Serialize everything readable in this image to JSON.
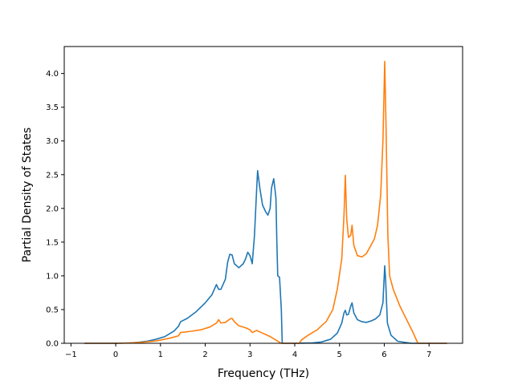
{
  "chart_data": {
    "type": "line",
    "title": "",
    "xlabel": "Frequency (THz)",
    "ylabel": "Partial Density of States",
    "xlim": [
      -1.15,
      7.75
    ],
    "ylim": [
      0.0,
      4.4
    ],
    "xticks": [
      -1,
      0,
      1,
      2,
      3,
      4,
      5,
      6,
      7
    ],
    "yticks": [
      0.0,
      0.5,
      1.0,
      1.5,
      2.0,
      2.5,
      3.0,
      3.5,
      4.0
    ],
    "xtick_labels": [
      "−1",
      "0",
      "1",
      "2",
      "3",
      "4",
      "5",
      "6",
      "7"
    ],
    "ytick_labels": [
      "0.0",
      "0.5",
      "1.0",
      "1.5",
      "2.0",
      "2.5",
      "3.0",
      "3.5",
      "4.0"
    ],
    "grid": false,
    "legend": "none",
    "series": [
      {
        "color": "#1f77b4",
        "points": [
          [
            -0.7,
            0.0
          ],
          [
            0.0,
            0.0
          ],
          [
            0.3,
            0.005
          ],
          [
            0.5,
            0.015
          ],
          [
            0.7,
            0.03
          ],
          [
            0.9,
            0.06
          ],
          [
            1.1,
            0.1
          ],
          [
            1.3,
            0.18
          ],
          [
            1.4,
            0.25
          ],
          [
            1.45,
            0.32
          ],
          [
            1.6,
            0.37
          ],
          [
            1.8,
            0.47
          ],
          [
            2.0,
            0.6
          ],
          [
            2.15,
            0.72
          ],
          [
            2.25,
            0.87
          ],
          [
            2.3,
            0.8
          ],
          [
            2.35,
            0.8
          ],
          [
            2.45,
            0.95
          ],
          [
            2.5,
            1.2
          ],
          [
            2.55,
            1.32
          ],
          [
            2.6,
            1.31
          ],
          [
            2.65,
            1.18
          ],
          [
            2.75,
            1.12
          ],
          [
            2.85,
            1.18
          ],
          [
            2.9,
            1.25
          ],
          [
            2.95,
            1.35
          ],
          [
            3.0,
            1.3
          ],
          [
            3.05,
            1.18
          ],
          [
            3.1,
            1.6
          ],
          [
            3.15,
            2.3
          ],
          [
            3.17,
            2.56
          ],
          [
            3.22,
            2.3
          ],
          [
            3.28,
            2.05
          ],
          [
            3.35,
            1.95
          ],
          [
            3.4,
            1.9
          ],
          [
            3.45,
            2.0
          ],
          [
            3.48,
            2.3
          ],
          [
            3.53,
            2.44
          ],
          [
            3.58,
            2.15
          ],
          [
            3.6,
            1.5
          ],
          [
            3.62,
            1.0
          ],
          [
            3.66,
            0.98
          ],
          [
            3.7,
            0.5
          ],
          [
            3.72,
            0.0
          ],
          [
            4.0,
            0.0
          ],
          [
            4.4,
            0.005
          ],
          [
            4.6,
            0.02
          ],
          [
            4.8,
            0.06
          ],
          [
            4.95,
            0.15
          ],
          [
            5.05,
            0.3
          ],
          [
            5.1,
            0.45
          ],
          [
            5.13,
            0.49
          ],
          [
            5.16,
            0.42
          ],
          [
            5.2,
            0.43
          ],
          [
            5.25,
            0.55
          ],
          [
            5.28,
            0.6
          ],
          [
            5.32,
            0.45
          ],
          [
            5.4,
            0.35
          ],
          [
            5.5,
            0.32
          ],
          [
            5.6,
            0.31
          ],
          [
            5.7,
            0.33
          ],
          [
            5.8,
            0.36
          ],
          [
            5.9,
            0.42
          ],
          [
            5.97,
            0.6
          ],
          [
            6.01,
            1.15
          ],
          [
            6.03,
            0.95
          ],
          [
            6.07,
            0.3
          ],
          [
            6.15,
            0.12
          ],
          [
            6.3,
            0.03
          ],
          [
            6.6,
            0.0
          ],
          [
            7.4,
            0.0
          ]
        ]
      },
      {
        "color": "#ff7f0e",
        "points": [
          [
            -0.7,
            0.0
          ],
          [
            0.0,
            0.0
          ],
          [
            0.3,
            0.005
          ],
          [
            0.6,
            0.015
          ],
          [
            0.9,
            0.035
          ],
          [
            1.2,
            0.075
          ],
          [
            1.4,
            0.11
          ],
          [
            1.45,
            0.16
          ],
          [
            1.7,
            0.18
          ],
          [
            1.9,
            0.2
          ],
          [
            2.1,
            0.24
          ],
          [
            2.25,
            0.3
          ],
          [
            2.3,
            0.35
          ],
          [
            2.35,
            0.3
          ],
          [
            2.45,
            0.31
          ],
          [
            2.55,
            0.36
          ],
          [
            2.6,
            0.37
          ],
          [
            2.65,
            0.32
          ],
          [
            2.75,
            0.26
          ],
          [
            2.9,
            0.23
          ],
          [
            3.0,
            0.2
          ],
          [
            3.05,
            0.16
          ],
          [
            3.15,
            0.19
          ],
          [
            3.25,
            0.16
          ],
          [
            3.45,
            0.1
          ],
          [
            3.6,
            0.04
          ],
          [
            3.7,
            0.0
          ],
          [
            4.1,
            0.0
          ],
          [
            4.15,
            0.05
          ],
          [
            4.3,
            0.12
          ],
          [
            4.5,
            0.2
          ],
          [
            4.7,
            0.32
          ],
          [
            4.85,
            0.5
          ],
          [
            4.95,
            0.8
          ],
          [
            5.05,
            1.25
          ],
          [
            5.1,
            1.9
          ],
          [
            5.13,
            2.49
          ],
          [
            5.16,
            1.85
          ],
          [
            5.2,
            1.57
          ],
          [
            5.25,
            1.6
          ],
          [
            5.28,
            1.75
          ],
          [
            5.32,
            1.45
          ],
          [
            5.4,
            1.3
          ],
          [
            5.5,
            1.28
          ],
          [
            5.6,
            1.33
          ],
          [
            5.7,
            1.45
          ],
          [
            5.78,
            1.55
          ],
          [
            5.85,
            1.75
          ],
          [
            5.92,
            2.2
          ],
          [
            5.97,
            3.0
          ],
          [
            6.01,
            4.18
          ],
          [
            6.04,
            3.2
          ],
          [
            6.08,
            1.6
          ],
          [
            6.12,
            1.0
          ],
          [
            6.2,
            0.8
          ],
          [
            6.35,
            0.55
          ],
          [
            6.5,
            0.35
          ],
          [
            6.65,
            0.15
          ],
          [
            6.75,
            0.0
          ],
          [
            7.4,
            0.0
          ]
        ]
      }
    ]
  }
}
